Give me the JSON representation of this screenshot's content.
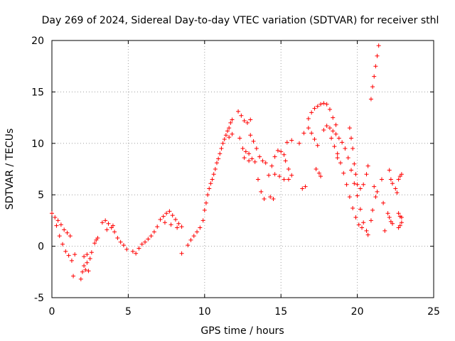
{
  "chart_data": {
    "type": "scatter",
    "title": "Day 269 of 2024, Sidereal Day-to-day VTEC variation (SDTVAR) for receiver sthl",
    "xlabel": "GPS time / hours",
    "ylabel": "SDTVAR / TECUs",
    "xlim": [
      0,
      25
    ],
    "ylim": [
      -5,
      20
    ],
    "xticks": [
      "0",
      "5",
      "10",
      "15",
      "20",
      "25"
    ],
    "yticks": [
      "-5",
      "0",
      "5",
      "10",
      "15",
      "20"
    ],
    "grid": true,
    "marker": "plus",
    "color": "#ff0000",
    "series": [
      {
        "name": "sthl",
        "points": [
          [
            0.0,
            3.2
          ],
          [
            0.2,
            2.8
          ],
          [
            0.4,
            2.5
          ],
          [
            0.6,
            2.1
          ],
          [
            0.8,
            1.6
          ],
          [
            1.0,
            1.3
          ],
          [
            1.2,
            1.0
          ],
          [
            0.3,
            2.0
          ],
          [
            0.5,
            1.0
          ],
          [
            0.7,
            0.2
          ],
          [
            0.9,
            -0.5
          ],
          [
            1.1,
            -0.9
          ],
          [
            1.3,
            -1.4
          ],
          [
            1.4,
            -2.9
          ],
          [
            1.5,
            -0.8
          ],
          [
            1.9,
            -3.2
          ],
          [
            2.0,
            -2.5
          ],
          [
            2.1,
            -1.9
          ],
          [
            2.2,
            -2.3
          ],
          [
            2.3,
            -1.6
          ],
          [
            2.4,
            -2.4
          ],
          [
            2.1,
            -1.0
          ],
          [
            2.3,
            -0.8
          ],
          [
            2.5,
            -1.2
          ],
          [
            2.6,
            -0.6
          ],
          [
            2.8,
            0.3
          ],
          [
            2.9,
            0.6
          ],
          [
            3.0,
            0.8
          ],
          [
            3.3,
            2.3
          ],
          [
            3.5,
            2.5
          ],
          [
            3.7,
            2.2
          ],
          [
            3.9,
            1.8
          ],
          [
            4.1,
            1.4
          ],
          [
            4.3,
            0.8
          ],
          [
            4.5,
            0.4
          ],
          [
            4.7,
            0.1
          ],
          [
            4.9,
            -0.3
          ],
          [
            3.6,
            1.6
          ],
          [
            4.0,
            2.0
          ],
          [
            5.3,
            -0.5
          ],
          [
            5.5,
            -0.7
          ],
          [
            5.7,
            -0.2
          ],
          [
            5.9,
            0.2
          ],
          [
            6.1,
            0.4
          ],
          [
            6.3,
            0.7
          ],
          [
            6.5,
            1.0
          ],
          [
            6.7,
            1.4
          ],
          [
            6.9,
            1.9
          ],
          [
            7.1,
            2.6
          ],
          [
            7.3,
            2.9
          ],
          [
            7.5,
            3.2
          ],
          [
            7.7,
            3.4
          ],
          [
            7.9,
            3.0
          ],
          [
            8.1,
            2.6
          ],
          [
            8.3,
            2.2
          ],
          [
            8.5,
            1.9
          ],
          [
            7.4,
            2.3
          ],
          [
            7.8,
            2.1
          ],
          [
            8.2,
            1.8
          ],
          [
            8.5,
            -0.7
          ],
          [
            8.9,
            0.1
          ],
          [
            9.1,
            0.6
          ],
          [
            9.3,
            1.0
          ],
          [
            9.5,
            1.4
          ],
          [
            9.7,
            1.8
          ],
          [
            9.9,
            2.5
          ],
          [
            10.0,
            3.5
          ],
          [
            10.1,
            4.2
          ],
          [
            10.2,
            5.0
          ],
          [
            10.3,
            5.6
          ],
          [
            10.4,
            6.1
          ],
          [
            10.5,
            6.5
          ],
          [
            10.6,
            7.0
          ],
          [
            10.7,
            7.5
          ],
          [
            10.8,
            8.1
          ],
          [
            10.9,
            8.5
          ],
          [
            11.0,
            9.0
          ],
          [
            11.1,
            9.5
          ],
          [
            11.2,
            10.0
          ],
          [
            11.3,
            10.4
          ],
          [
            11.4,
            10.8
          ],
          [
            11.5,
            11.2
          ],
          [
            11.6,
            11.5
          ],
          [
            11.7,
            12.0
          ],
          [
            11.8,
            12.3
          ],
          [
            11.6,
            10.6
          ],
          [
            11.8,
            10.9
          ],
          [
            12.2,
            13.1
          ],
          [
            12.4,
            12.7
          ],
          [
            12.6,
            12.2
          ],
          [
            12.8,
            12.0
          ],
          [
            13.0,
            12.3
          ],
          [
            12.3,
            10.5
          ],
          [
            12.5,
            9.5
          ],
          [
            12.7,
            9.2
          ],
          [
            12.9,
            9.0
          ],
          [
            12.6,
            8.6
          ],
          [
            12.9,
            8.3
          ],
          [
            13.1,
            8.5
          ],
          [
            13.3,
            8.2
          ],
          [
            13.0,
            10.8
          ],
          [
            13.2,
            10.2
          ],
          [
            13.4,
            9.5
          ],
          [
            13.6,
            8.7
          ],
          [
            13.8,
            8.3
          ],
          [
            14.0,
            8.1
          ],
          [
            13.5,
            6.5
          ],
          [
            13.7,
            5.3
          ],
          [
            13.9,
            4.6
          ],
          [
            14.3,
            4.8
          ],
          [
            14.5,
            4.6
          ],
          [
            14.2,
            6.9
          ],
          [
            14.4,
            7.8
          ],
          [
            14.6,
            8.7
          ],
          [
            14.8,
            9.3
          ],
          [
            15.0,
            9.2
          ],
          [
            15.2,
            8.9
          ],
          [
            14.6,
            7.0
          ],
          [
            14.9,
            6.8
          ],
          [
            15.2,
            6.5
          ],
          [
            15.5,
            6.5
          ],
          [
            15.3,
            8.3
          ],
          [
            15.5,
            7.5
          ],
          [
            15.7,
            6.9
          ],
          [
            15.4,
            10.1
          ],
          [
            15.7,
            10.3
          ],
          [
            16.2,
            10.0
          ],
          [
            16.4,
            5.6
          ],
          [
            16.6,
            5.8
          ],
          [
            16.5,
            11.0
          ],
          [
            16.8,
            11.5
          ],
          [
            17.0,
            11.0
          ],
          [
            17.2,
            10.4
          ],
          [
            17.4,
            9.8
          ],
          [
            17.3,
            7.5
          ],
          [
            17.5,
            7.1
          ],
          [
            17.6,
            6.8
          ],
          [
            16.8,
            12.4
          ],
          [
            17.0,
            13.0
          ],
          [
            17.2,
            13.4
          ],
          [
            17.4,
            13.6
          ],
          [
            17.6,
            13.8
          ],
          [
            17.8,
            13.9
          ],
          [
            18.0,
            13.8
          ],
          [
            18.2,
            13.3
          ],
          [
            18.4,
            12.5
          ],
          [
            18.6,
            11.8
          ],
          [
            17.8,
            11.3
          ],
          [
            18.0,
            11.7
          ],
          [
            18.2,
            11.5
          ],
          [
            18.4,
            11.2
          ],
          [
            18.6,
            10.9
          ],
          [
            18.8,
            10.5
          ],
          [
            19.0,
            10.1
          ],
          [
            19.2,
            9.5
          ],
          [
            19.4,
            8.6
          ],
          [
            19.6,
            7.4
          ],
          [
            19.8,
            6.1
          ],
          [
            20.0,
            4.9
          ],
          [
            20.2,
            3.6
          ],
          [
            20.4,
            2.3
          ],
          [
            20.6,
            1.5
          ],
          [
            20.7,
            1.1
          ],
          [
            18.3,
            10.5
          ],
          [
            18.5,
            9.7
          ],
          [
            18.7,
            9.0
          ],
          [
            18.9,
            8.1
          ],
          [
            19.1,
            7.1
          ],
          [
            19.3,
            6.0
          ],
          [
            19.5,
            4.8
          ],
          [
            19.7,
            3.7
          ],
          [
            19.9,
            2.8
          ],
          [
            20.1,
            2.1
          ],
          [
            20.3,
            1.8
          ],
          [
            18.7,
            8.6
          ],
          [
            19.5,
            11.5
          ],
          [
            19.6,
            10.5
          ],
          [
            19.7,
            9.5
          ],
          [
            19.8,
            8.0
          ],
          [
            19.9,
            7.0
          ],
          [
            20.0,
            6.0
          ],
          [
            20.2,
            5.6
          ],
          [
            20.4,
            6.0
          ],
          [
            20.6,
            7.0
          ],
          [
            20.7,
            7.8
          ],
          [
            20.9,
            2.5
          ],
          [
            21.0,
            3.5
          ],
          [
            21.2,
            4.8
          ],
          [
            21.3,
            5.3
          ],
          [
            21.1,
            5.8
          ],
          [
            21.6,
            6.5
          ],
          [
            21.7,
            4.2
          ],
          [
            21.8,
            1.5
          ],
          [
            20.9,
            14.3
          ],
          [
            21.0,
            15.5
          ],
          [
            21.1,
            16.5
          ],
          [
            21.2,
            17.5
          ],
          [
            21.3,
            18.5
          ],
          [
            21.4,
            19.5
          ],
          [
            22.0,
            3.2
          ],
          [
            22.1,
            2.8
          ],
          [
            22.2,
            2.4
          ],
          [
            22.3,
            2.2
          ],
          [
            22.1,
            7.4
          ],
          [
            22.2,
            6.5
          ],
          [
            22.3,
            6.1
          ],
          [
            22.5,
            5.6
          ],
          [
            22.6,
            5.2
          ],
          [
            22.7,
            6.5
          ],
          [
            22.8,
            6.8
          ],
          [
            22.9,
            7.0
          ],
          [
            22.7,
            3.2
          ],
          [
            22.8,
            2.9
          ],
          [
            22.9,
            2.8
          ],
          [
            22.7,
            1.8
          ],
          [
            22.8,
            2.0
          ],
          [
            22.9,
            2.3
          ]
        ]
      }
    ]
  }
}
